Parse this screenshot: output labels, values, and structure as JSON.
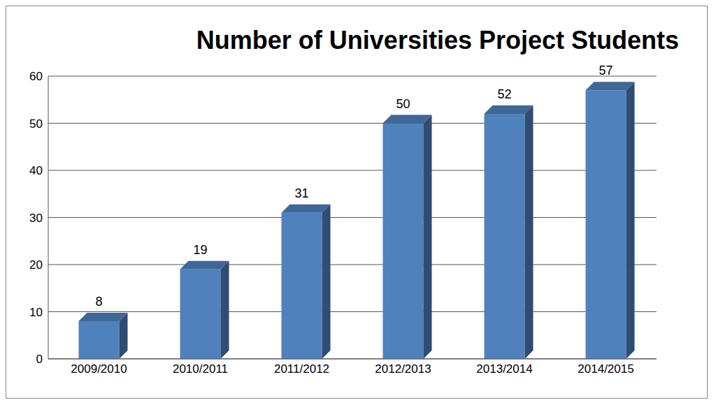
{
  "chart_data": {
    "type": "bar",
    "title": "Number of Universities Project Students",
    "categories": [
      "2009/2010",
      "2010/2011",
      "2011/2012",
      "2012/2013",
      "2013/2014",
      "2014/2015"
    ],
    "values": [
      8,
      19,
      31,
      50,
      52,
      57
    ],
    "color": "#4f81bd",
    "ylim": [
      0,
      60
    ],
    "yticks": [
      0,
      10,
      20,
      30,
      40,
      50,
      60
    ],
    "grid": true,
    "data_labels": true
  }
}
